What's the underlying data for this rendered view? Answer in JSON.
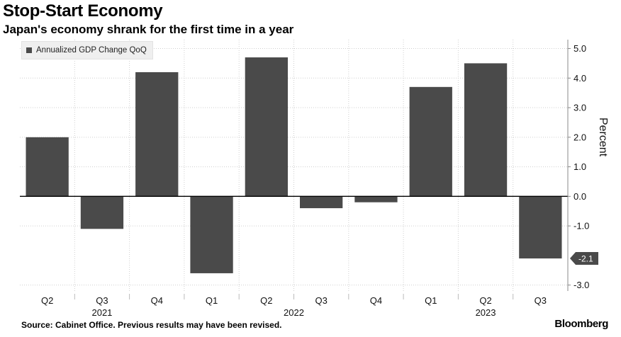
{
  "chart_data": {
    "type": "bar",
    "title": "Stop-Start Economy",
    "subtitle": "Japan's economy shrank for the first time in a year",
    "legend": [
      "Annualized GDP Change QoQ"
    ],
    "legend_position": "top-left",
    "categories": [
      "Q2",
      "Q3",
      "Q4",
      "Q1",
      "Q2",
      "Q3",
      "Q4",
      "Q1",
      "Q2",
      "Q3"
    ],
    "years": [
      {
        "label": "2021",
        "from": 0,
        "to": 2
      },
      {
        "label": "2022",
        "from": 3,
        "to": 6
      },
      {
        "label": "2023",
        "from": 7,
        "to": 9
      }
    ],
    "series": [
      {
        "name": "Annualized GDP Change QoQ",
        "values": [
          2.0,
          -1.1,
          4.2,
          -2.6,
          4.7,
          -0.4,
          -0.2,
          3.7,
          4.5,
          -2.1
        ]
      }
    ],
    "ylabel": "Percent",
    "ylim": [
      -3.2,
      5.3
    ],
    "yticks": [
      5.0,
      4.0,
      3.0,
      2.0,
      1.0,
      0.0,
      -1.0,
      -3.0
    ],
    "ytick_labels": [
      "5.0",
      "4.0",
      "3.0",
      "2.0",
      "1.0",
      "0.0",
      "-1.0",
      "-3.0"
    ],
    "last_value_label": "-2.1",
    "grid": true,
    "source": "Source: Cabinet Office. Previous results may have been revised.",
    "brand": "Bloomberg"
  },
  "colors": {
    "bar": "#4a4a4a",
    "grid": "#cfcfcf",
    "zero_line": "#000000",
    "callout": "#4a4a4a"
  }
}
